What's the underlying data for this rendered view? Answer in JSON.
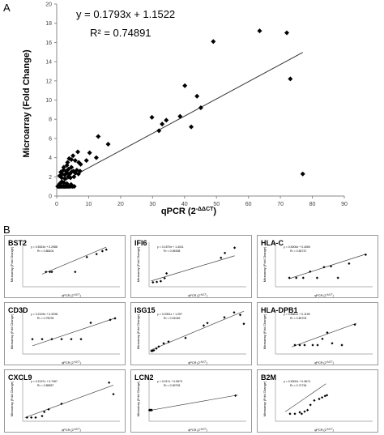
{
  "panel_a": {
    "label": "A",
    "equation": "y = 0.1793x + 1.1522",
    "r2": "R² = 0.74891",
    "xlabel": "qPCR (2",
    "xlabel_sup": "-ΔΔCT",
    "xlabel_close": ")",
    "ylabel": "Microarray (Fold Change)"
  },
  "panel_b": {
    "label": "B",
    "mini_xlabel": "qPCR (2",
    "mini_xlabel_sup": "-ΔΔCT",
    "mini_xlabel_close": ")",
    "mini_ylabel": "Microarray (Fold Change)"
  },
  "chart_data": [
    {
      "type": "scatter",
      "xlim": [
        0,
        90
      ],
      "ylim": [
        0,
        20
      ],
      "xticks": [
        0,
        10,
        20,
        30,
        40,
        50,
        60,
        70,
        80,
        90
      ],
      "yticks": [
        0,
        2,
        4,
        6,
        8,
        10,
        12,
        14,
        16,
        18,
        20
      ],
      "grid": false,
      "marker": "diamond",
      "trendline": {
        "slope": 0.1793,
        "intercept": 1.1522,
        "x_range": [
          0,
          77
        ]
      },
      "points": [
        [
          0.3,
          1.0
        ],
        [
          0.6,
          1.0
        ],
        [
          0.9,
          1.0
        ],
        [
          1.2,
          1.0
        ],
        [
          1.5,
          1.0
        ],
        [
          1.8,
          1.0
        ],
        [
          2.1,
          1.0
        ],
        [
          2.4,
          1.0
        ],
        [
          2.7,
          1.0
        ],
        [
          3.0,
          1.0
        ],
        [
          3.3,
          1.0
        ],
        [
          3.6,
          1.0
        ],
        [
          4.0,
          1.0
        ],
        [
          4.5,
          1.0
        ],
        [
          5.0,
          1.0
        ],
        [
          5.5,
          1.0
        ],
        [
          1.0,
          1.3
        ],
        [
          1.6,
          1.5
        ],
        [
          2.2,
          1.4
        ],
        [
          3.2,
          1.3
        ],
        [
          4.5,
          1.2
        ],
        [
          0.9,
          2.1
        ],
        [
          1.3,
          2.5
        ],
        [
          1.7,
          2.3
        ],
        [
          2.1,
          2.7
        ],
        [
          2.5,
          2.2
        ],
        [
          2.9,
          2.6
        ],
        [
          3.3,
          2.4
        ],
        [
          3.7,
          2.8
        ],
        [
          4.1,
          2.3
        ],
        [
          4.6,
          2.5
        ],
        [
          5.2,
          2.6
        ],
        [
          5.8,
          2.4
        ],
        [
          6.3,
          2.7
        ],
        [
          6.8,
          2.3
        ],
        [
          7.3,
          2.6
        ],
        [
          1.6,
          1.9
        ],
        [
          2.6,
          1.8
        ],
        [
          3.6,
          2.0
        ],
        [
          4.3,
          1.9
        ],
        [
          5.4,
          2.0
        ],
        [
          2.2,
          3.0
        ],
        [
          3.2,
          3.2
        ],
        [
          4.6,
          3.0
        ],
        [
          3.4,
          3.5
        ],
        [
          4.6,
          3.8
        ],
        [
          5.8,
          3.7
        ],
        [
          3.9,
          3.9
        ],
        [
          6.9,
          3.5
        ],
        [
          5.1,
          4.2
        ],
        [
          6.6,
          4.6
        ],
        [
          7.5,
          3.3
        ],
        [
          9.3,
          3.7
        ],
        [
          10.3,
          4.5
        ],
        [
          12.4,
          4.0
        ],
        [
          13.0,
          6.2
        ],
        [
          16.1,
          5.4
        ],
        [
          29.8,
          8.2
        ],
        [
          32.0,
          6.8
        ],
        [
          33.0,
          7.5
        ],
        [
          34.3,
          7.9
        ],
        [
          38.6,
          8.3
        ],
        [
          40.1,
          11.5
        ],
        [
          42.1,
          7.2
        ],
        [
          43.9,
          10.4
        ],
        [
          45.1,
          9.2
        ],
        [
          49.0,
          16.1
        ],
        [
          63.5,
          17.2
        ],
        [
          72.0,
          17.0
        ],
        [
          73.1,
          12.2
        ],
        [
          77.0,
          2.3
        ]
      ]
    },
    {
      "type": "scatter",
      "gene": "BST2",
      "equation": "y = 0.5515x + 0.2988",
      "r2": "R² = 0.86404",
      "xlim": [
        0,
        5
      ],
      "ylim": [
        0,
        3
      ],
      "trendline": {
        "slope": 0.5515,
        "intercept": 0.2988,
        "x_range": [
          1,
          4.3
        ]
      },
      "points": [
        [
          1.2,
          1.0
        ],
        [
          1.4,
          1.0
        ],
        [
          1.5,
          1.0
        ],
        [
          2.7,
          1.0
        ],
        [
          3.3,
          2.0
        ],
        [
          3.8,
          2.2
        ],
        [
          4.1,
          2.4
        ],
        [
          4.3,
          2.5
        ]
      ]
    },
    {
      "type": "scatter",
      "gene": "IFI6",
      "equation": "y = 0.1579x + 1.4011",
      "r2": "R² = 0.95308",
      "xlim": [
        0,
        50
      ],
      "ylim": [
        0,
        12
      ],
      "trendline": {
        "slope": 0.1579,
        "intercept": 1.4011,
        "x_range": [
          1,
          44
        ]
      },
      "points": [
        [
          2,
          1.2
        ],
        [
          4,
          1.3
        ],
        [
          6,
          1.5
        ],
        [
          8,
          2.3
        ],
        [
          9,
          3.6
        ],
        [
          37,
          7.8
        ],
        [
          39,
          9.1
        ],
        [
          44,
          10.5
        ]
      ]
    },
    {
      "type": "scatter",
      "gene": "HLA-C",
      "equation": "y = 0.5006x + 0.4069",
      "r2": "R² = 0.82737",
      "xlim": [
        0,
        7
      ],
      "ylim": [
        0,
        5
      ],
      "trendline": {
        "slope": 0.5006,
        "intercept": 0.4069,
        "x_range": [
          1,
          6.5
        ]
      },
      "points": [
        [
          1.0,
          1.0
        ],
        [
          1.5,
          1.0
        ],
        [
          2.0,
          1.0
        ],
        [
          2.5,
          1.7
        ],
        [
          3.0,
          1.0
        ],
        [
          3.5,
          2.2
        ],
        [
          4.0,
          2.3
        ],
        [
          4.5,
          1.0
        ],
        [
          5.3,
          2.6
        ],
        [
          6.5,
          3.6
        ]
      ]
    },
    {
      "type": "scatter",
      "gene": "CD3D",
      "equation": "y = 0.2193x + 0.3298",
      "r2": "R² = 0.75078",
      "xlim": [
        0,
        10
      ],
      "ylim": [
        0,
        3
      ],
      "trendline": {
        "slope": 0.2193,
        "intercept": 0.3298,
        "x_range": [
          1,
          9.5
        ]
      },
      "points": [
        [
          1,
          1.0
        ],
        [
          2,
          1.0
        ],
        [
          3,
          1.0
        ],
        [
          4,
          1.0
        ],
        [
          5,
          1.0
        ],
        [
          6,
          1.0
        ],
        [
          7,
          2.1
        ],
        [
          9,
          2.3
        ],
        [
          9.5,
          2.4
        ]
      ]
    },
    {
      "type": "scatter",
      "gene": "ISG15",
      "equation": "y = 0.2051x + 1.297",
      "r2": "R² = 0.91049",
      "xlim": [
        0,
        80
      ],
      "ylim": [
        0,
        18
      ],
      "trendline": {
        "slope": 0.2051,
        "intercept": 1.297,
        "x_range": [
          1,
          78
        ]
      },
      "points": [
        [
          2,
          1.2
        ],
        [
          3,
          1.3
        ],
        [
          4,
          1.5
        ],
        [
          6,
          2.2
        ],
        [
          8,
          3.0
        ],
        [
          12,
          4.3
        ],
        [
          16,
          5.0
        ],
        [
          30,
          6.5
        ],
        [
          45,
          11.5
        ],
        [
          48,
          12.5
        ],
        [
          62,
          14.8
        ],
        [
          70,
          16.8
        ],
        [
          75,
          15.8
        ],
        [
          78,
          12.2
        ]
      ]
    },
    {
      "type": "scatter",
      "gene": "HLA-DPB1",
      "equation": "y = 0.6661x + 0.1199",
      "r2": "R² = 0.80703",
      "xlim": [
        0,
        6
      ],
      "ylim": [
        0,
        5
      ],
      "trendline": {
        "slope": 0.6661,
        "intercept": 0.1199,
        "x_range": [
          1,
          5
        ]
      },
      "points": [
        [
          1.2,
          1.0
        ],
        [
          1.5,
          1.0
        ],
        [
          1.8,
          1.0
        ],
        [
          2.3,
          1.0
        ],
        [
          2.6,
          1.0
        ],
        [
          2.9,
          1.7
        ],
        [
          3.2,
          2.4
        ],
        [
          3.5,
          1.2
        ],
        [
          4.1,
          1.0
        ],
        [
          4.9,
          3.3
        ]
      ]
    },
    {
      "type": "scatter",
      "gene": "CXCL9",
      "equation": "y = 0.2137x + 0.7457",
      "r2": "R² = 0.85557",
      "xlim": [
        0,
        45
      ],
      "ylim": [
        0,
        12
      ],
      "trendline": {
        "slope": 0.2137,
        "intercept": 0.7457,
        "x_range": [
          1,
          42
        ]
      },
      "points": [
        [
          2,
          1.0
        ],
        [
          4,
          1.0
        ],
        [
          6,
          1.0
        ],
        [
          9,
          1.4
        ],
        [
          10,
          2.5
        ],
        [
          12,
          3.2
        ],
        [
          18,
          4.7
        ],
        [
          40,
          10.4
        ],
        [
          42,
          7.3
        ]
      ]
    },
    {
      "type": "scatter",
      "gene": "LCN2",
      "equation": "y = 0.017x + 0.9573",
      "r2": "R² = 0.99793",
      "xlim": [
        0,
        90
      ],
      "ylim": [
        0,
        4
      ],
      "trendline": {
        "slope": 0.017,
        "intercept": 0.9573,
        "x_range": [
          0,
          82
        ]
      },
      "points": [
        [
          0.3,
          1.0
        ],
        [
          0.7,
          1.0
        ],
        [
          1.2,
          1.0
        ],
        [
          1.8,
          1.0
        ],
        [
          2.5,
          1.0
        ],
        [
          80,
          2.3
        ]
      ]
    },
    {
      "type": "scatter",
      "gene": "B2M",
      "equation": "y = 0.9000x + 0.3674",
      "r2": "R² = 0.71734",
      "xlim": [
        0,
        10
      ],
      "ylim": [
        0,
        6
      ],
      "trendline": {
        "slope": 0.9,
        "intercept": 0.3674,
        "x_range": [
          1,
          5.2
        ]
      },
      "points": [
        [
          1.5,
          1.0
        ],
        [
          2.0,
          1.0
        ],
        [
          2.5,
          1.2
        ],
        [
          2.7,
          1.0
        ],
        [
          3.0,
          1.3
        ],
        [
          3.3,
          1.5
        ],
        [
          3.6,
          2.2
        ],
        [
          4.0,
          2.8
        ],
        [
          4.5,
          3.0
        ],
        [
          4.8,
          3.2
        ],
        [
          5.1,
          3.4
        ],
        [
          5.3,
          3.5
        ]
      ]
    }
  ]
}
